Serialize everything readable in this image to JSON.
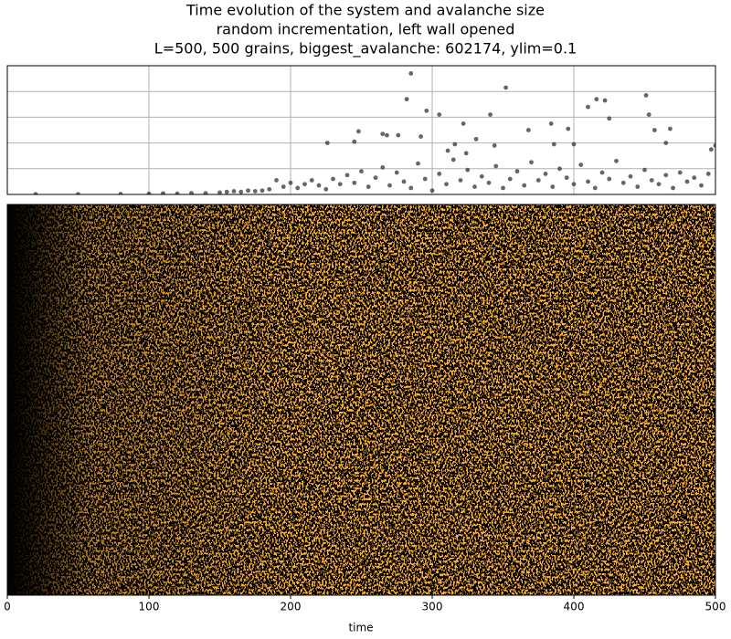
{
  "chart_data": [
    {
      "type": "scatter",
      "title": [
        "Time evolution of the system and avalanche size",
        "random incrementation, left wall opened",
        "L=500, 500 grains, biggest_avalanche: 602174, ylim=0.1"
      ],
      "x": [
        20,
        50,
        80,
        100,
        110,
        120,
        130,
        140,
        150,
        155,
        160,
        165,
        170,
        175,
        180,
        185,
        190,
        195,
        200,
        205,
        210,
        215,
        220,
        225,
        230,
        235,
        240,
        245,
        250,
        255,
        260,
        265,
        270,
        275,
        280,
        285,
        290,
        295,
        300,
        305,
        310,
        315,
        320,
        325,
        330,
        335,
        340,
        345,
        350,
        355,
        360,
        365,
        370,
        375,
        380,
        385,
        390,
        395,
        400,
        405,
        410,
        415,
        420,
        425,
        430,
        435,
        440,
        445,
        450,
        455,
        460,
        465,
        470,
        475,
        480,
        485,
        490,
        495,
        285,
        282,
        296,
        305,
        352,
        341,
        322,
        292,
        265,
        248,
        226,
        245,
        268,
        276,
        311,
        316,
        324,
        331,
        344,
        368,
        384,
        386,
        396,
        400,
        410,
        416,
        422,
        425,
        451,
        453,
        457,
        468,
        465,
        497,
        500
      ],
      "values": [
        0.0002,
        0.0002,
        0.0003,
        0.0005,
        0.0008,
        0.0006,
        0.001,
        0.0009,
        0.0015,
        0.002,
        0.0025,
        0.002,
        0.003,
        0.0025,
        0.003,
        0.004,
        0.011,
        0.006,
        0.009,
        0.005,
        0.008,
        0.011,
        0.007,
        0.004,
        0.012,
        0.008,
        0.015,
        0.009,
        0.018,
        0.006,
        0.013,
        0.021,
        0.007,
        0.017,
        0.01,
        0.005,
        0.024,
        0.012,
        0.003,
        0.016,
        0.008,
        0.027,
        0.011,
        0.019,
        0.006,
        0.014,
        0.009,
        0.022,
        0.005,
        0.012,
        0.018,
        0.007,
        0.025,
        0.011,
        0.016,
        0.006,
        0.02,
        0.013,
        0.008,
        0.023,
        0.01,
        0.005,
        0.017,
        0.012,
        0.026,
        0.009,
        0.014,
        0.006,
        0.019,
        0.011,
        0.008,
        0.015,
        0.005,
        0.017,
        0.01,
        0.013,
        0.007,
        0.016,
        0.094,
        0.074,
        0.065,
        0.062,
        0.083,
        0.062,
        0.055,
        0.045,
        0.047,
        0.049,
        0.04,
        0.041,
        0.046,
        0.046,
        0.034,
        0.039,
        0.032,
        0.043,
        0.038,
        0.05,
        0.055,
        0.039,
        0.051,
        0.039,
        0.068,
        0.074,
        0.073,
        0.059,
        0.077,
        0.062,
        0.05,
        0.051,
        0.04,
        0.035,
        0.038
      ],
      "color": "#333333",
      "xlim": [
        0,
        500
      ],
      "xticks": [
        0,
        100,
        200,
        300,
        400,
        500
      ],
      "ylim": [
        0,
        0.1
      ],
      "yticks": [
        0,
        0.02,
        0.04,
        0.06,
        0.08,
        0.1
      ],
      "grid": true
    },
    {
      "type": "heatmap",
      "xlabel": "time",
      "xlim": [
        0,
        500
      ],
      "xticks": [
        0,
        100,
        200,
        300,
        400,
        500
      ],
      "colors": [
        "#000000",
        "#ffb02e"
      ]
    }
  ]
}
